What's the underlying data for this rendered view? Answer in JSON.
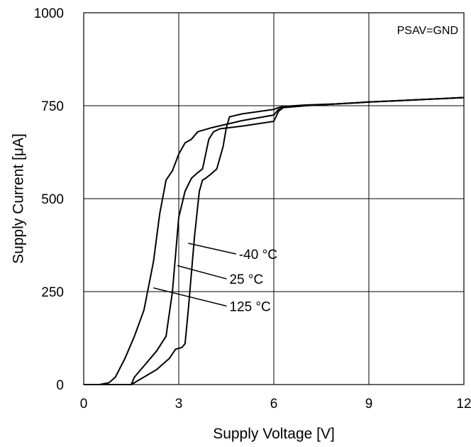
{
  "chart_data": {
    "type": "line",
    "title": "",
    "xlabel": "Supply Voltage [V]",
    "ylabel": "Supply Current [μA]",
    "xlim": [
      0,
      12
    ],
    "ylim": [
      0,
      1000
    ],
    "xticks": [
      0,
      3,
      6,
      9,
      12
    ],
    "yticks": [
      0,
      250,
      500,
      750,
      1000
    ],
    "grid": true,
    "annotation": "PSAV=GND",
    "series": [
      {
        "name": "-40 °C",
        "x": [
          0,
          1.5,
          1.6,
          2.0,
          2.3,
          2.7,
          2.9,
          3.1,
          3.2,
          3.3,
          3.5,
          3.65,
          3.75,
          3.85,
          4.0,
          4.2,
          4.4,
          4.5,
          4.6,
          5.0,
          6.0,
          6.15,
          6.3,
          7,
          8,
          9,
          10,
          11,
          12
        ],
        "y": [
          0,
          0,
          5,
          25,
          40,
          70,
          95,
          100,
          110,
          200,
          400,
          520,
          550,
          555,
          565,
          580,
          640,
          690,
          720,
          728,
          740,
          745,
          748,
          752,
          755,
          760,
          764,
          768,
          772
        ]
      },
      {
        "name": "25 °C",
        "x": [
          0,
          1.5,
          1.6,
          2.0,
          2.3,
          2.6,
          2.8,
          3.0,
          3.2,
          3.4,
          3.6,
          3.75,
          3.85,
          3.95,
          4.1,
          4.3,
          5.0,
          6.0,
          6.15,
          6.3,
          7,
          8,
          9,
          10,
          11,
          12
        ],
        "y": [
          0,
          0,
          20,
          60,
          90,
          130,
          250,
          450,
          520,
          555,
          570,
          580,
          620,
          660,
          680,
          688,
          695,
          708,
          735,
          745,
          750,
          755,
          760,
          764,
          768,
          772
        ]
      },
      {
        "name": "125 °C",
        "x": [
          0,
          0.5,
          0.8,
          1.0,
          1.3,
          1.6,
          1.9,
          2.2,
          2.4,
          2.6,
          2.8,
          3.0,
          3.2,
          3.4,
          3.6,
          4.0,
          5.0,
          6.0,
          6.15,
          6.3,
          7,
          8,
          9,
          10,
          11,
          12
        ],
        "y": [
          0,
          0,
          5,
          20,
          70,
          130,
          200,
          330,
          460,
          550,
          575,
          620,
          650,
          660,
          680,
          690,
          710,
          725,
          740,
          745,
          750,
          755,
          760,
          764,
          768,
          772
        ]
      }
    ],
    "callouts": [
      {
        "series": "-40 °C",
        "text": "-40 °C",
        "x": 3.3,
        "y": 380,
        "label_x": 4.9,
        "label_y": 355
      },
      {
        "series": "25 °C",
        "text": "25 °C",
        "x": 2.95,
        "y": 320,
        "label_x": 4.6,
        "label_y": 288
      },
      {
        "series": "125 °C",
        "text": "125 °C",
        "x": 2.2,
        "y": 260,
        "label_x": 4.6,
        "label_y": 215
      }
    ]
  }
}
